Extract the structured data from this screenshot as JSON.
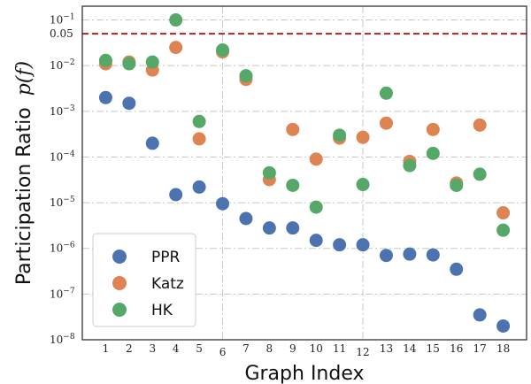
{
  "chart_data": {
    "type": "scatter",
    "xlabel": "Graph Index",
    "ylabel": "Participation Ratio",
    "ylabel_math": "p(f)",
    "yscale": "log",
    "ylim": [
      1e-08,
      0.2
    ],
    "y_ticks": [
      {
        "value": 1e-08,
        "label": "10",
        "exp": "−8"
      },
      {
        "value": 1e-07,
        "label": "10",
        "exp": "−7"
      },
      {
        "value": 1e-06,
        "label": "10",
        "exp": "−6"
      },
      {
        "value": 1e-05,
        "label": "10",
        "exp": "−5"
      },
      {
        "value": 0.0001,
        "label": "10",
        "exp": "−4"
      },
      {
        "value": 0.001,
        "label": "10",
        "exp": "−3"
      },
      {
        "value": 0.01,
        "label": "10",
        "exp": "−2"
      },
      {
        "value": 0.05,
        "label": "0.05",
        "exp": ""
      },
      {
        "value": 0.1,
        "label": "10",
        "exp": "−1"
      }
    ],
    "x_ticks": [
      "1",
      "2",
      "3",
      "4",
      "5",
      "6",
      "7",
      "8",
      "9",
      "10",
      "11",
      "12",
      "13",
      "14",
      "15",
      "16",
      "17",
      "18"
    ],
    "threshold": {
      "value": 0.05,
      "color": "#b22222"
    },
    "vertical_lines": [
      6,
      12
    ],
    "grid": true,
    "legend": "bottom-left",
    "series": [
      {
        "name": "PPR",
        "color": "#4c72b0",
        "values": [
          0.002,
          0.0015,
          0.0002,
          1.5e-05,
          2.2e-05,
          9.5e-06,
          4.5e-06,
          2.8e-06,
          2.8e-06,
          1.5e-06,
          1.2e-06,
          1.2e-06,
          7e-07,
          7.5e-07,
          7.2e-07,
          3.5e-07,
          3.5e-08,
          2e-08
        ]
      },
      {
        "name": "Katz",
        "color": "#dd8452",
        "values": [
          0.011,
          0.012,
          0.008,
          0.025,
          0.00025,
          0.02,
          0.005,
          3.2e-05,
          0.0004,
          9e-05,
          0.00026,
          0.00027,
          0.00055,
          8e-05,
          0.0004,
          2.7e-05,
          0.0005,
          6e-06
        ]
      },
      {
        "name": "HK",
        "color": "#55a868",
        "values": [
          0.013,
          0.011,
          0.012,
          0.1,
          0.0006,
          0.022,
          0.006,
          4.5e-05,
          2.4e-05,
          8e-06,
          0.0003,
          2.5e-05,
          0.0025,
          6.5e-05,
          0.00012,
          2.4e-05,
          4.2e-05,
          2.5e-06
        ]
      }
    ]
  }
}
